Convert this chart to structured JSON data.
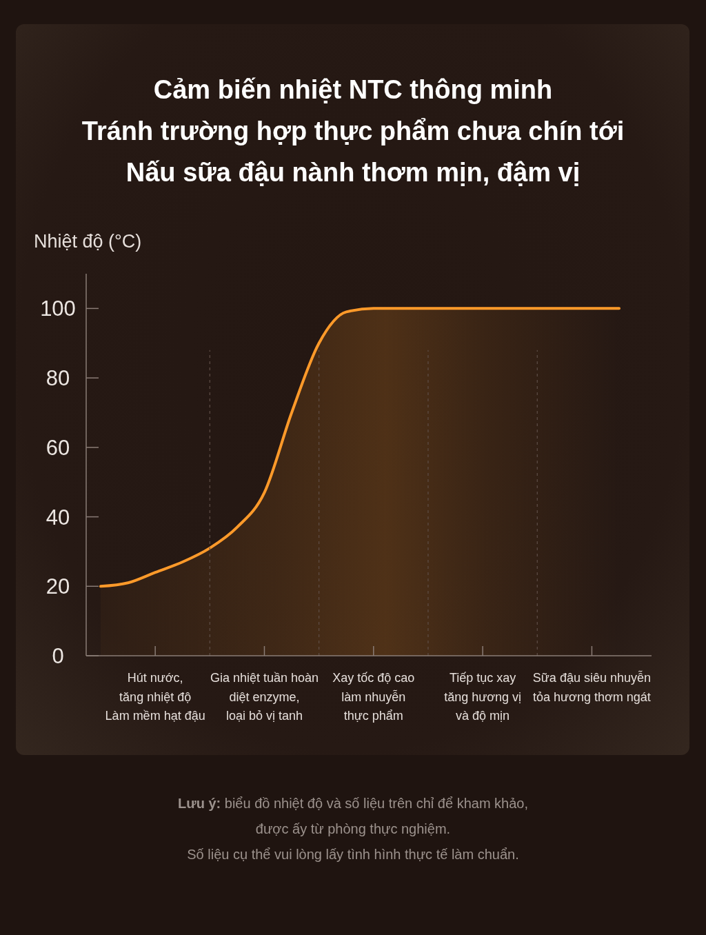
{
  "chart_data": {
    "type": "area",
    "title": "Cảm biến nhiệt NTC thông minh\nTránh trường hợp thực phẩm chưa chín tới\nNấu sữa đậu nành thơm mịn, đậm vị",
    "ylabel": "Nhiệt độ (°C)",
    "categories": [
      null,
      null,
      "Hút nước,\ntăng nhiệt độ\nLàm mềm hạt đậu",
      null,
      null,
      null,
      "Gia nhiệt tuần hoàn\ndiệt enzyme,\nloại bỏ vị tanh",
      null,
      null,
      null,
      "Xay tốc độ cao\nlàm nhuyễn\nthực phẩm",
      null,
      null,
      null,
      "Tiếp tục xay\ntăng hương vị\nvà độ mịn",
      null,
      null,
      null,
      "Sữa đậu siêu nhuyễn\ntỏa hương thơm ngát",
      null
    ],
    "values": [
      20,
      21,
      24,
      27,
      31,
      37,
      47,
      70,
      90,
      99,
      100,
      100,
      100,
      100,
      100,
      100,
      100,
      100,
      100,
      100
    ],
    "color": "#ff9a2a",
    "ylim": [
      0,
      110
    ],
    "yticks": [
      0,
      20,
      40,
      60,
      80,
      100
    ],
    "grid": "x",
    "annotations": [
      "Lưu ý:",
      "biểu đồ nhiệt độ và số liệu trên chỉ để kham khảo,",
      "được ấy từ phòng thực nghiệm.",
      "Số liệu cụ thể vui lòng lấy tình hình thực tế làm chuẩn."
    ]
  }
}
